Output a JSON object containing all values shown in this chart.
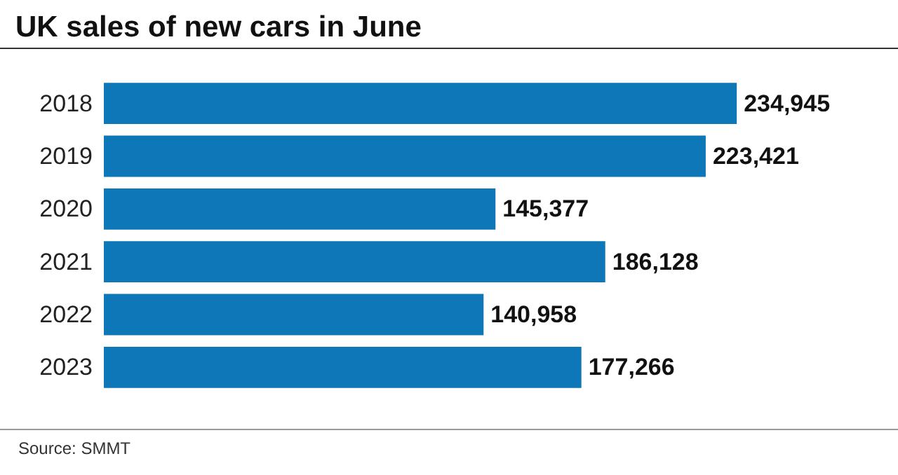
{
  "chart_data": {
    "type": "bar",
    "orientation": "horizontal",
    "title": "UK sales of new cars in June",
    "categories": [
      "2018",
      "2019",
      "2020",
      "2021",
      "2022",
      "2023"
    ],
    "values": [
      234945,
      223421,
      145377,
      186128,
      140958,
      177266
    ],
    "value_labels": [
      "234,945",
      "223,421",
      "145,377",
      "186,128",
      "140,958",
      "177,266"
    ],
    "color": "#0e77b8",
    "annotations": [
      "Source: SMMT"
    ]
  }
}
